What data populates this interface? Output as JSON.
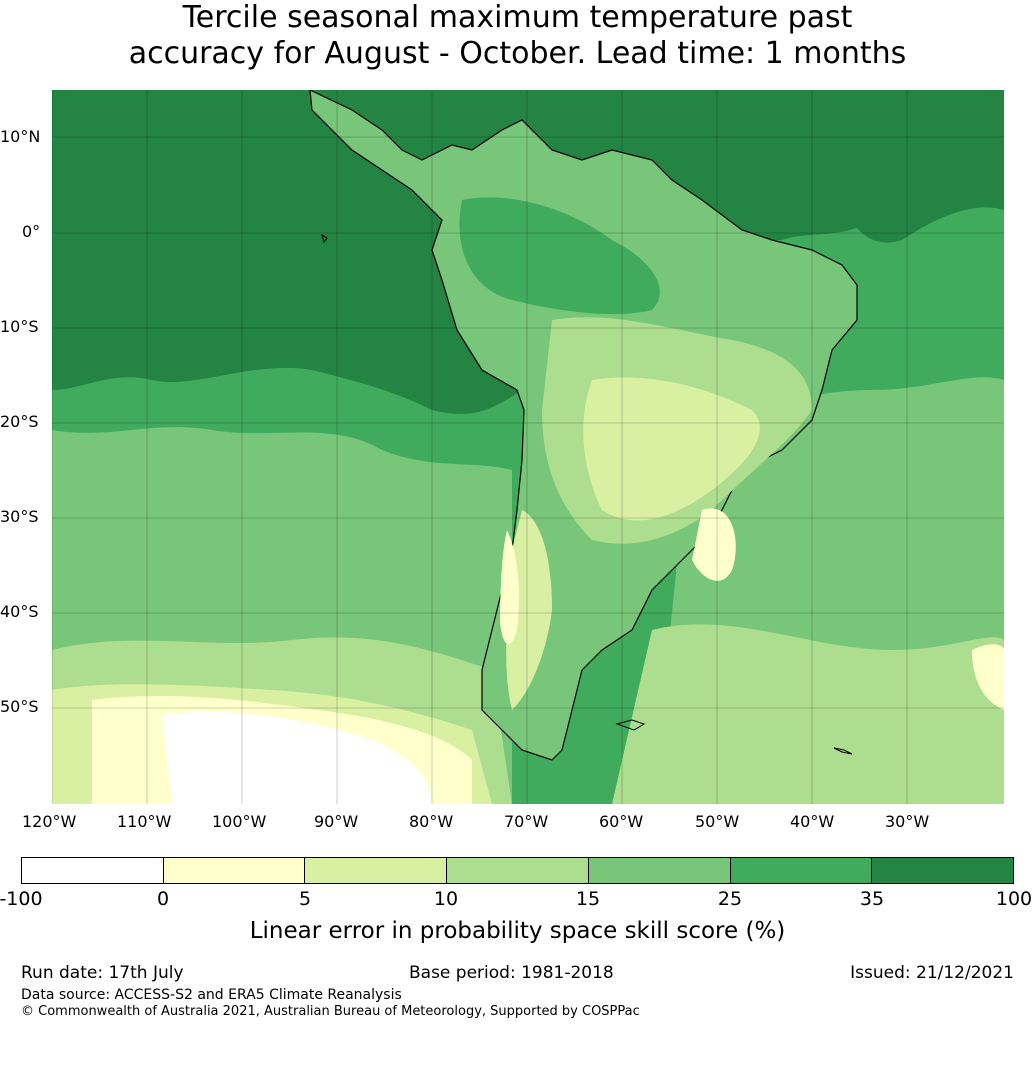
{
  "title": {
    "line1": "Tercile seasonal maximum temperature past",
    "line2": "accuracy for August - October. Lead time: 1 months"
  },
  "map": {
    "lat_labels": [
      "10°N",
      "0°",
      "10°S",
      "20°S",
      "30°S",
      "40°S",
      "50°S"
    ],
    "lon_labels": [
      "120°W",
      "110°W",
      "100°W",
      "90°W",
      "80°W",
      "70°W",
      "60°W",
      "50°W",
      "40°W",
      "30°W"
    ]
  },
  "colorbar": {
    "ticks": [
      "-100",
      "0",
      "5",
      "10",
      "15",
      "25",
      "35",
      "100"
    ],
    "colors": [
      "#ffffff",
      "#ffffcc",
      "#d9f0a3",
      "#addd8e",
      "#78c679",
      "#41ab5d",
      "#238443"
    ],
    "label": "Linear error in probability space skill score (%)"
  },
  "footer": {
    "run_date": "Run date: 17th July",
    "base_period": "Base period: 1981-2018",
    "issued": "Issued: 21/12/2021",
    "data_source": "Data source: ACCESS-S2 and ERA5 Climate Reanalysis",
    "copyright": "© Commonwealth of Australia 2021, Australian Bureau of Meteorology, Supported by COSPPac"
  }
}
